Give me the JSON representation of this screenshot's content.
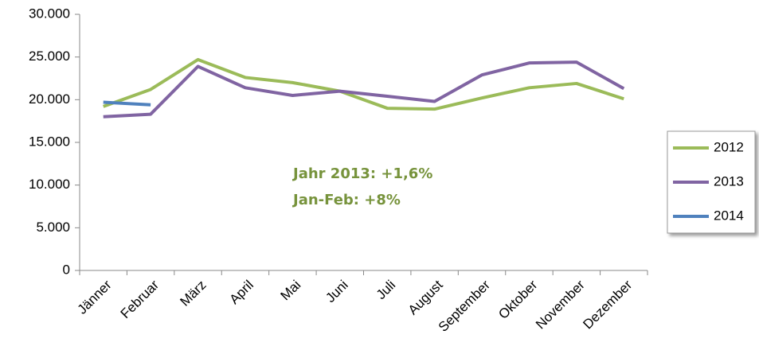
{
  "chart_data": {
    "type": "line",
    "categories": [
      "Jänner",
      "Februar",
      "März",
      "April",
      "Mai",
      "Juni",
      "Juli",
      "August",
      "September",
      "Oktober",
      "November",
      "Dezember"
    ],
    "series": [
      {
        "name": "2012",
        "color": "#9bbb59",
        "values": [
          19200,
          21200,
          24700,
          22600,
          22000,
          21000,
          19000,
          18900,
          20200,
          21400,
          21900,
          20100
        ]
      },
      {
        "name": "2013",
        "color": "#8064a2",
        "values": [
          18000,
          18300,
          23900,
          21400,
          20500,
          21000,
          20400,
          19800,
          22900,
          24300,
          24400,
          21300
        ]
      },
      {
        "name": "2014",
        "color": "#4f81bd",
        "values": [
          19700,
          19400,
          null,
          null,
          null,
          null,
          null,
          null,
          null,
          null,
          null,
          null
        ]
      }
    ],
    "ylim": [
      0,
      30000
    ],
    "yticks": [
      0,
      {
        "value": 5000,
        "label": "5.000"
      },
      {
        "value": 10000,
        "label": "10.000"
      },
      {
        "value": 15000,
        "label": "15.000"
      },
      {
        "value": 20000,
        "label": "20.000"
      },
      {
        "value": 25000,
        "label": "25.000"
      },
      {
        "value": 30000,
        "label": "30.000"
      }
    ],
    "annotations": [
      "Jahr 2013: +1,6%",
      "Jan-Feb: +8%"
    ],
    "legend": "right"
  }
}
